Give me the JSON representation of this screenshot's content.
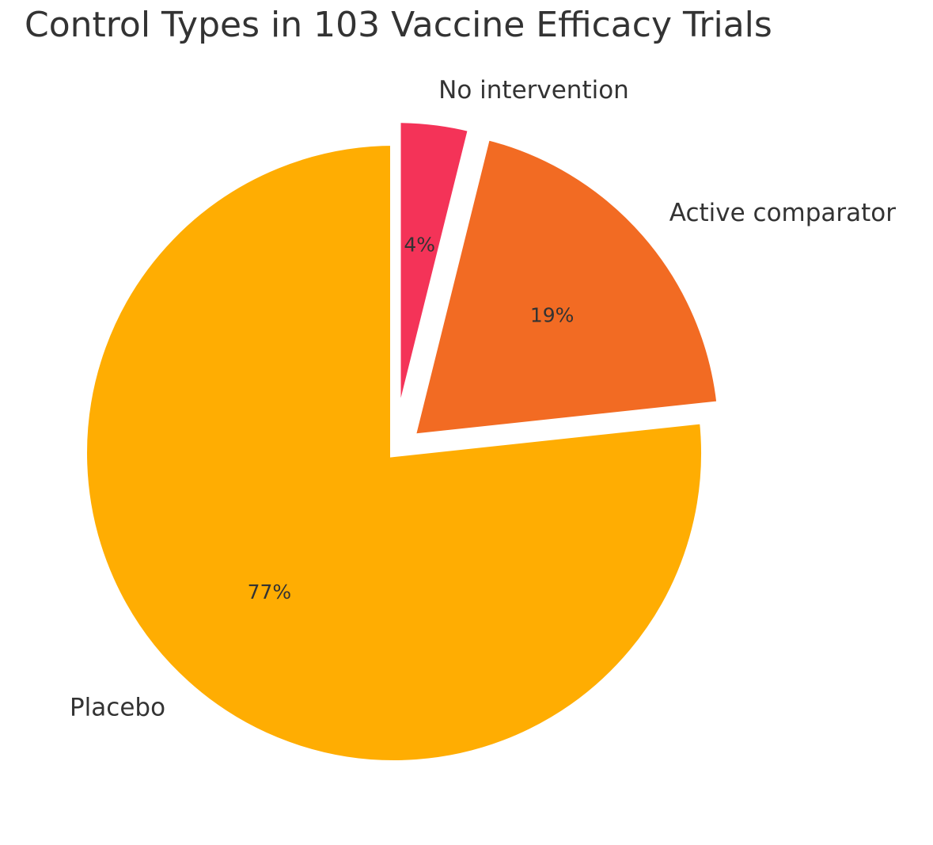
{
  "chart_data": {
    "type": "pie",
    "title": "Control Types in 103 Vaccine Efficacy Trials",
    "start": "12 o'clock",
    "direction": "clockwise",
    "slices": [
      {
        "label": "No intervention",
        "value": 4,
        "percent_label": "4%",
        "color": "#F43358",
        "exploded": true
      },
      {
        "label": "Active comparator",
        "value": 20,
        "percent_label": "19%",
        "color": "#F26B23",
        "exploded": true
      },
      {
        "label": "Placebo",
        "value": 79,
        "percent_label": "77%",
        "color": "#FFAD02",
        "exploded": false
      }
    ]
  }
}
